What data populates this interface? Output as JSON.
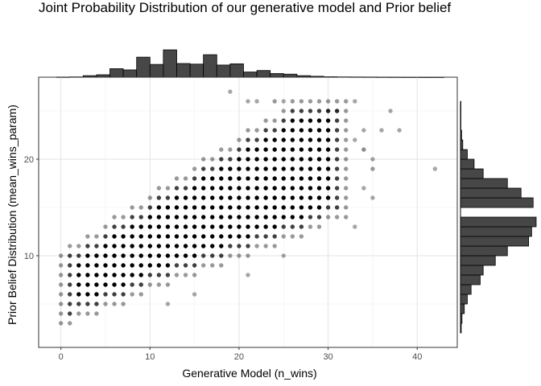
{
  "chart_data": {
    "type": "scatter",
    "title": "Joint Probability Distribution of our generative model and Prior belief",
    "xlabel": "Generative Model (n_wins)",
    "ylabel": "Prior Belief Distribution (mean_wins_param)",
    "xlim": [
      -2.5,
      44.5
    ],
    "ylim": [
      0.5,
      28.5
    ],
    "x_ticks": [
      0,
      10,
      20,
      30,
      40
    ],
    "y_ticks": [
      10,
      20
    ],
    "grid": true,
    "point_color": "#000000",
    "bar_fill": "#474747",
    "bar_stroke": "#000000",
    "top_histogram": {
      "bin_starts": [
        -0.5,
        1,
        2.5,
        4,
        5.5,
        7,
        8.5,
        10,
        11.5,
        13,
        14.5,
        16,
        17.5,
        19,
        20.5,
        22,
        23.5,
        25,
        26.5,
        28,
        29.5,
        31,
        32.5,
        34,
        35.5,
        37,
        38.5,
        40,
        41.5
      ],
      "bin_width": 1.5,
      "counts": [
        0.005,
        0.01,
        0.05,
        0.08,
        0.28,
        0.24,
        0.66,
        0.42,
        0.9,
        0.45,
        0.43,
        0.74,
        0.4,
        0.44,
        0.17,
        0.22,
        0.12,
        0.1,
        0.05,
        0.03,
        0.015,
        0.01,
        0.008,
        0.006,
        0.004,
        0.003,
        0.002,
        0.001,
        0.001
      ]
    },
    "right_histogram": {
      "bin_starts": [
        2,
        3,
        4,
        5,
        6,
        7,
        8,
        9,
        10,
        11,
        12,
        13,
        15,
        16,
        17,
        18,
        19,
        20,
        21,
        22,
        23,
        24,
        25
      ],
      "bin_width": 1,
      "counts": [
        0.01,
        0.02,
        0.05,
        0.09,
        0.14,
        0.26,
        0.3,
        0.46,
        0.62,
        0.9,
        0.94,
        1.0,
        0.96,
        0.8,
        0.62,
        0.3,
        0.18,
        0.09,
        0.03,
        0.015,
        0.005,
        0.003,
        0.001
      ]
    },
    "density_points": [
      {
        "x": 5,
        "y": 13,
        "a": 1
      },
      {
        "x": 10,
        "y": 15,
        "a": 1
      },
      {
        "x": 15,
        "y": 17,
        "a": 1
      }
    ],
    "outliers": [
      {
        "x": 19,
        "y": 27,
        "a": 0.35
      },
      {
        "x": 22,
        "y": 26,
        "a": 0.35
      },
      {
        "x": 24,
        "y": 26,
        "a": 0.4
      },
      {
        "x": 25,
        "y": 26,
        "a": 0.35
      },
      {
        "x": 21,
        "y": 26,
        "a": 0.35
      },
      {
        "x": 33,
        "y": 26,
        "a": 0.35
      },
      {
        "x": 37,
        "y": 25,
        "a": 0.35
      },
      {
        "x": 30,
        "y": 25,
        "a": 0.5
      },
      {
        "x": 31,
        "y": 25,
        "a": 0.35
      },
      {
        "x": 34,
        "y": 23,
        "a": 0.35
      },
      {
        "x": 36,
        "y": 23,
        "a": 0.35
      },
      {
        "x": 38,
        "y": 23,
        "a": 0.35
      },
      {
        "x": 33,
        "y": 22,
        "a": 0.35
      },
      {
        "x": 34,
        "y": 21,
        "a": 0.45
      },
      {
        "x": 35,
        "y": 20,
        "a": 0.35
      },
      {
        "x": 42,
        "y": 19,
        "a": 0.35
      },
      {
        "x": 35,
        "y": 19,
        "a": 0.4
      },
      {
        "x": 34,
        "y": 17,
        "a": 0.35
      },
      {
        "x": 35,
        "y": 16,
        "a": 0.35
      },
      {
        "x": 33,
        "y": 13,
        "a": 0.35
      },
      {
        "x": 25,
        "y": 10,
        "a": 0.35
      },
      {
        "x": 21,
        "y": 8,
        "a": 0.35
      },
      {
        "x": 15,
        "y": 6,
        "a": 0.35
      },
      {
        "x": 12,
        "y": 5,
        "a": 0.35
      }
    ]
  }
}
